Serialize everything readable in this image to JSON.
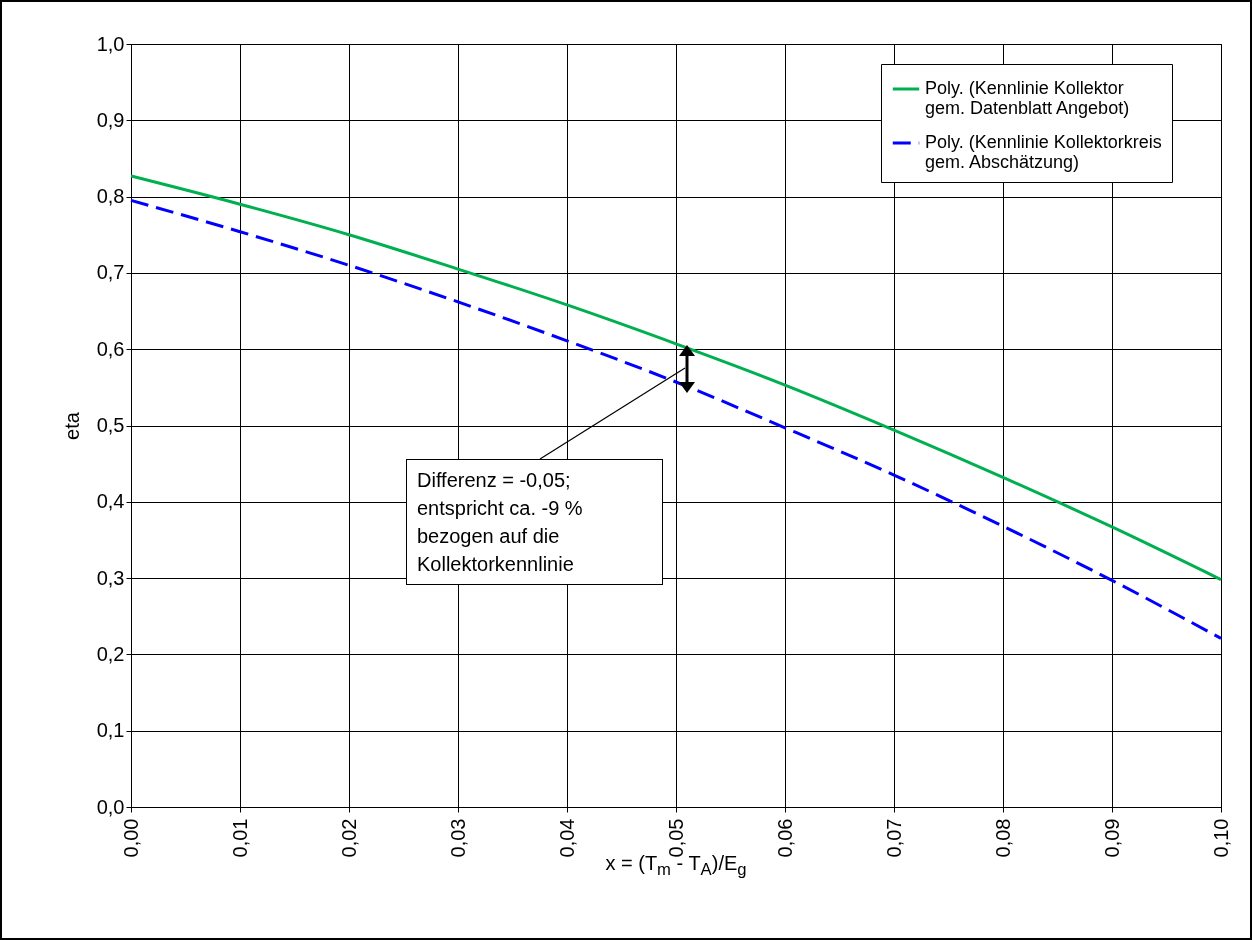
{
  "chart_data": {
    "type": "line",
    "xlabel": "x = (T$_{m}$ - T$_{A}$)/E$_{g}$",
    "ylabel": "eta",
    "x": [
      0,
      0.01,
      0.02,
      0.03,
      0.04,
      0.05,
      0.06,
      0.07,
      0.08,
      0.09,
      0.1
    ],
    "series": [
      {
        "name": "Poly. (Kennlinie Kollektor gem. Datenblatt Angebot)",
        "color": "#00b050",
        "line_style": "solid",
        "values": [
          0.827,
          0.79,
          0.75,
          0.705,
          0.658,
          0.607,
          0.553,
          0.494,
          0.432,
          0.367,
          0.298
        ]
      },
      {
        "name": "Poly. (Kennlinie Kollektorkreis gem. Abschätzung)",
        "color": "#0000ff",
        "line_style": "dashed",
        "values": [
          0.795,
          0.754,
          0.71,
          0.662,
          0.611,
          0.557,
          0.497,
          0.435,
          0.368,
          0.297,
          0.221
        ]
      }
    ],
    "xlim": [
      0,
      0.1
    ],
    "ylim": [
      0,
      1
    ],
    "xticks": [
      {
        "value": 0,
        "label": "0,00"
      },
      {
        "value": 0.01,
        "label": "0,01"
      },
      {
        "value": 0.02,
        "label": "0,02"
      },
      {
        "value": 0.03,
        "label": "0,03"
      },
      {
        "value": 0.04,
        "label": "0,04"
      },
      {
        "value": 0.05,
        "label": "0,05"
      },
      {
        "value": 0.06,
        "label": "0,06"
      },
      {
        "value": 0.07,
        "label": "0,07"
      },
      {
        "value": 0.08,
        "label": "0,08"
      },
      {
        "value": 0.09,
        "label": "0,09"
      },
      {
        "value": 0.1,
        "label": "0,10"
      }
    ],
    "yticks": [
      {
        "value": 0,
        "label": "0,0"
      },
      {
        "value": 0.1,
        "label": "0,1"
      },
      {
        "value": 0.2,
        "label": "0,2"
      },
      {
        "value": 0.3,
        "label": "0,3"
      },
      {
        "value": 0.4,
        "label": "0,4"
      },
      {
        "value": 0.5,
        "label": "0,5"
      },
      {
        "value": 0.6,
        "label": "0,6"
      },
      {
        "value": 0.7,
        "label": "0,7"
      },
      {
        "value": 0.8,
        "label": "0,8"
      },
      {
        "value": 0.9,
        "label": "0,9"
      },
      {
        "value": 1,
        "label": "1,0"
      }
    ],
    "annotations": [
      "Differenz = -0,05;\nentspricht ca. -9 %\nbezogen auf die\nKollektorkennlinie"
    ],
    "grid": true,
    "legend": "top right",
    "marker": "none"
  }
}
